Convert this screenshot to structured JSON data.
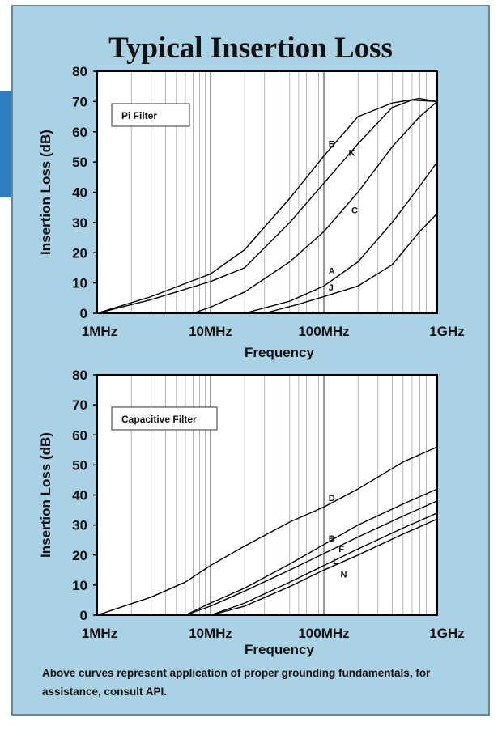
{
  "title": "Typical Insertion Loss",
  "footnote": "Above curves represent application of proper grounding fundamentals, for assistance, consult API.",
  "colors": {
    "panel": "#a9d3e4",
    "accent": "#2d7fc4",
    "plot_bg": "#ffffff",
    "curve": "#000000"
  },
  "chart_data": [
    {
      "type": "line",
      "annotation": "Pi Filter",
      "xlabel": "Frequency",
      "ylabel": "Insertion Loss (dB)",
      "x_scale": "log",
      "xlim": [
        1,
        1000
      ],
      "ylim": [
        0,
        80
      ],
      "x_unit": "MHz",
      "x_tick_values": [
        1,
        10,
        100,
        1000
      ],
      "x_tick_labels": [
        "1MHz",
        "10MHz",
        "100MHz",
        "1GHz"
      ],
      "y_ticks": [
        0,
        10,
        20,
        30,
        40,
        50,
        60,
        70,
        80
      ],
      "grid": "log-minor vertical",
      "series": [
        {
          "name": "E",
          "label_at": [
            110,
            55
          ],
          "x": [
            1,
            3,
            10,
            20,
            50,
            100,
            200,
            400,
            700,
            1000
          ],
          "y": [
            0,
            5.5,
            13,
            21,
            38,
            52,
            65,
            69.5,
            71,
            70
          ]
        },
        {
          "name": "K",
          "label_at": [
            165,
            52
          ],
          "x": [
            1,
            3,
            10,
            20,
            50,
            100,
            200,
            400,
            600,
            1000
          ],
          "y": [
            0,
            4.5,
            10.5,
            15,
            30,
            43,
            56,
            68,
            70.5,
            70
          ]
        },
        {
          "name": "C",
          "label_at": [
            175,
            33
          ],
          "x": [
            7,
            10,
            20,
            50,
            100,
            200,
            400,
            700,
            1000
          ],
          "y": [
            0,
            2,
            7,
            17,
            27,
            40,
            55,
            65,
            70
          ]
        },
        {
          "name": "A",
          "label_at": [
            110,
            13
          ],
          "x": [
            20,
            50,
            100,
            200,
            400,
            700,
            1000
          ],
          "y": [
            0,
            4,
            9,
            17,
            30,
            42,
            50
          ]
        },
        {
          "name": "J",
          "label_at": [
            110,
            7.5
          ],
          "x": [
            30,
            60,
            100,
            200,
            400,
            700,
            1000
          ],
          "y": [
            0,
            3,
            5.5,
            9,
            16,
            27,
            33
          ]
        }
      ]
    },
    {
      "type": "line",
      "annotation": "Capacitive Filter",
      "xlabel": "Frequency",
      "ylabel": "Insertion Loss (dB)",
      "x_scale": "log",
      "xlim": [
        1,
        1000
      ],
      "ylim": [
        0,
        80
      ],
      "x_unit": "MHz",
      "x_tick_values": [
        1,
        10,
        100,
        1000
      ],
      "x_tick_labels": [
        "1MHz",
        "10MHz",
        "100MHz",
        "1GHz"
      ],
      "y_ticks": [
        0,
        10,
        20,
        30,
        40,
        50,
        60,
        70,
        80
      ],
      "grid": "log-minor vertical",
      "series": [
        {
          "name": "D",
          "label_at": [
            110,
            38
          ],
          "x": [
            1,
            3,
            6,
            10,
            20,
            50,
            100,
            200,
            500,
            1000
          ],
          "y": [
            0,
            6,
            11,
            16.5,
            23,
            31,
            36,
            42,
            51,
            56
          ]
        },
        {
          "name": "B",
          "label_at": [
            110,
            24.5
          ],
          "x": [
            6,
            10,
            20,
            50,
            100,
            200,
            500,
            1000
          ],
          "y": [
            0,
            4,
            9,
            17,
            23.5,
            30,
            37,
            42
          ]
        },
        {
          "name": "F",
          "label_at": [
            135,
            21
          ],
          "x": [
            6,
            10,
            20,
            50,
            100,
            200,
            500,
            1000
          ],
          "y": [
            0,
            3,
            8,
            15,
            20.5,
            26,
            33,
            38
          ]
        },
        {
          "name": "L",
          "label_at": [
            120,
            17
          ],
          "x": [
            10,
            20,
            50,
            100,
            200,
            500,
            1000
          ],
          "y": [
            0,
            4,
            11,
            16.5,
            22,
            29,
            34
          ]
        },
        {
          "name": "N",
          "label_at": [
            140,
            12.5
          ],
          "x": [
            10,
            20,
            50,
            100,
            200,
            500,
            1000
          ],
          "y": [
            0,
            3,
            9.5,
            15,
            20,
            27,
            32
          ]
        }
      ]
    }
  ]
}
